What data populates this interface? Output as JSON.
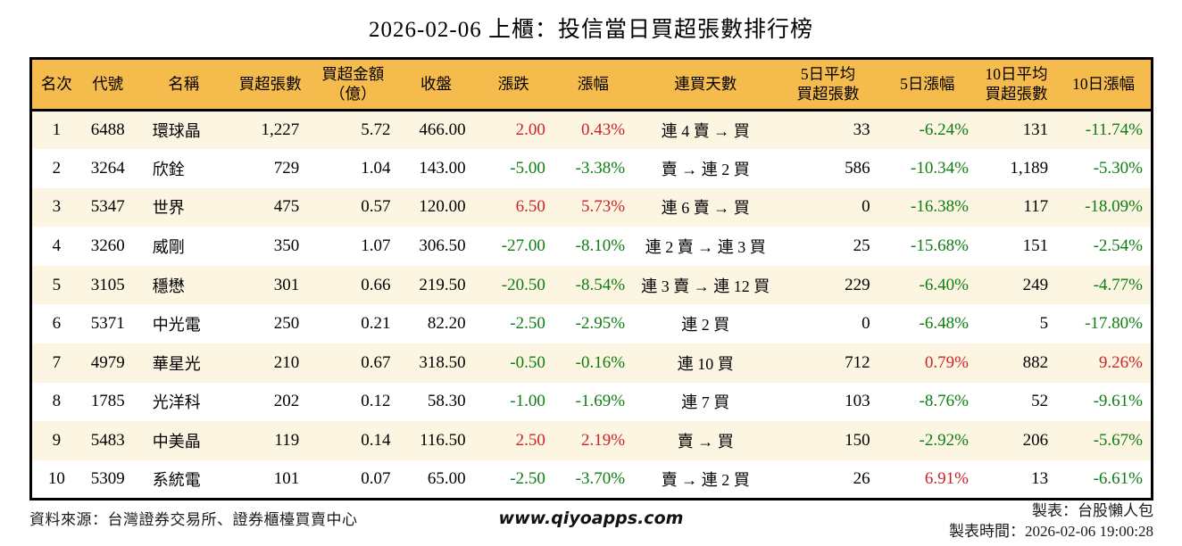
{
  "title": "2026-02-06 上櫃：投信當日買超張數排行榜",
  "table": {
    "headers": [
      "名次",
      "代號",
      "名稱",
      "買超張數",
      "買超金額\n（億）",
      "收盤",
      "漲跌",
      "漲幅",
      "連買天數",
      "5日平均\n買超張數",
      "5日漲幅",
      "10日平均\n買超張數",
      "10日漲幅"
    ],
    "rows": [
      {
        "rank": "1",
        "code": "6488",
        "name": "環球晶",
        "net_buy": "1,227",
        "amount": "5.72",
        "close": "466.00",
        "change": "2.00",
        "change_pct": "0.43%",
        "streak": "連 4 賣 → 買",
        "avg5": "33",
        "pct5": "-6.24%",
        "avg10": "131",
        "pct10": "-11.74%"
      },
      {
        "rank": "2",
        "code": "3264",
        "name": "欣銓",
        "net_buy": "729",
        "amount": "1.04",
        "close": "143.00",
        "change": "-5.00",
        "change_pct": "-3.38%",
        "streak": "賣 → 連 2 買",
        "avg5": "586",
        "pct5": "-10.34%",
        "avg10": "1,189",
        "pct10": "-5.30%"
      },
      {
        "rank": "3",
        "code": "5347",
        "name": "世界",
        "net_buy": "475",
        "amount": "0.57",
        "close": "120.00",
        "change": "6.50",
        "change_pct": "5.73%",
        "streak": "連 6 賣 → 買",
        "avg5": "0",
        "pct5": "-16.38%",
        "avg10": "117",
        "pct10": "-18.09%"
      },
      {
        "rank": "4",
        "code": "3260",
        "name": "威剛",
        "net_buy": "350",
        "amount": "1.07",
        "close": "306.50",
        "change": "-27.00",
        "change_pct": "-8.10%",
        "streak": "連 2 賣 → 連 3 買",
        "avg5": "25",
        "pct5": "-15.68%",
        "avg10": "151",
        "pct10": "-2.54%"
      },
      {
        "rank": "5",
        "code": "3105",
        "name": "穩懋",
        "net_buy": "301",
        "amount": "0.66",
        "close": "219.50",
        "change": "-20.50",
        "change_pct": "-8.54%",
        "streak": "連 3 賣 → 連 12 買",
        "avg5": "229",
        "pct5": "-6.40%",
        "avg10": "249",
        "pct10": "-4.77%"
      },
      {
        "rank": "6",
        "code": "5371",
        "name": "中光電",
        "net_buy": "250",
        "amount": "0.21",
        "close": "82.20",
        "change": "-2.50",
        "change_pct": "-2.95%",
        "streak": "連 2 買",
        "avg5": "0",
        "pct5": "-6.48%",
        "avg10": "5",
        "pct10": "-17.80%"
      },
      {
        "rank": "7",
        "code": "4979",
        "name": "華星光",
        "net_buy": "210",
        "amount": "0.67",
        "close": "318.50",
        "change": "-0.50",
        "change_pct": "-0.16%",
        "streak": "連 10 買",
        "avg5": "712",
        "pct5": "0.79%",
        "avg10": "882",
        "pct10": "9.26%"
      },
      {
        "rank": "8",
        "code": "1785",
        "name": "光洋科",
        "net_buy": "202",
        "amount": "0.12",
        "close": "58.30",
        "change": "-1.00",
        "change_pct": "-1.69%",
        "streak": "連 7 買",
        "avg5": "103",
        "pct5": "-8.76%",
        "avg10": "52",
        "pct10": "-9.61%"
      },
      {
        "rank": "9",
        "code": "5483",
        "name": "中美晶",
        "net_buy": "119",
        "amount": "0.14",
        "close": "116.50",
        "change": "2.50",
        "change_pct": "2.19%",
        "streak": "賣 → 買",
        "avg5": "150",
        "pct5": "-2.92%",
        "avg10": "206",
        "pct10": "-5.67%"
      },
      {
        "rank": "10",
        "code": "5309",
        "name": "系統電",
        "net_buy": "101",
        "amount": "0.07",
        "close": "65.00",
        "change": "-2.50",
        "change_pct": "-3.70%",
        "streak": "賣 → 連 2 買",
        "avg5": "26",
        "pct5": "6.91%",
        "avg10": "13",
        "pct10": "-6.61%"
      }
    ]
  },
  "footer": {
    "source": "資料來源：台灣證券交易所、證券櫃檯買賣中心",
    "website": "www.qiyoapps.com",
    "maker": "製表：台股懶人包",
    "generated": "製表時間：2026-02-06 19:00:28"
  },
  "colors": {
    "header_bg": "#F6BB4D",
    "row_alt_bg": "#FCF5E2",
    "up": "#CC2229",
    "down": "#0E7D12",
    "border": "#000000"
  }
}
